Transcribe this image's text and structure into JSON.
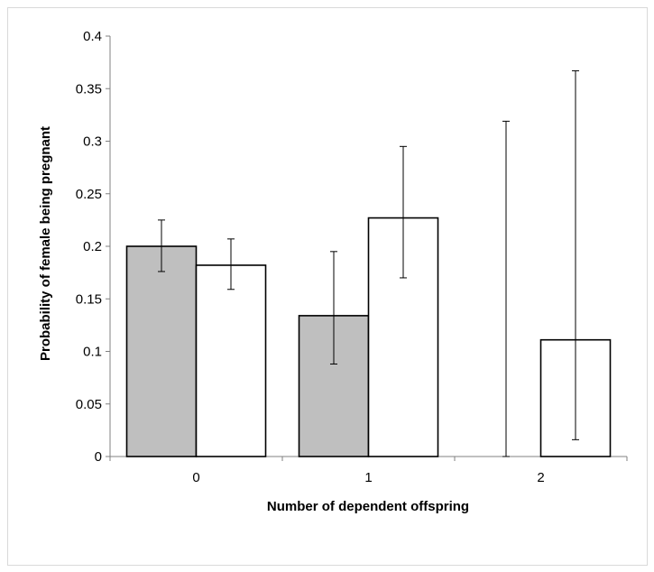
{
  "chart_data": {
    "type": "bar",
    "title": "",
    "xlabel": "Number of dependent offspring",
    "ylabel": "Probability of female being pregnant",
    "categories": [
      "0",
      "1",
      "2"
    ],
    "ylim": [
      0,
      0.4
    ],
    "yticks": [
      "0",
      "0.05",
      "0.1",
      "0.15",
      "0.2",
      "0.25",
      "0.3",
      "0.35",
      "0.4"
    ],
    "grid": false,
    "legend": "none",
    "series": [
      {
        "color": "#bfbfbf",
        "values": [
          0.2,
          0.134,
          0
        ],
        "error_low": [
          0.176,
          0.088,
          0
        ],
        "error_high": [
          0.225,
          0.195,
          0.319
        ]
      },
      {
        "color": "#ffffff",
        "values": [
          0.182,
          0.227,
          0.111
        ],
        "error_low": [
          0.159,
          0.17,
          0.016
        ],
        "error_high": [
          0.207,
          0.295,
          0.367
        ]
      }
    ]
  }
}
